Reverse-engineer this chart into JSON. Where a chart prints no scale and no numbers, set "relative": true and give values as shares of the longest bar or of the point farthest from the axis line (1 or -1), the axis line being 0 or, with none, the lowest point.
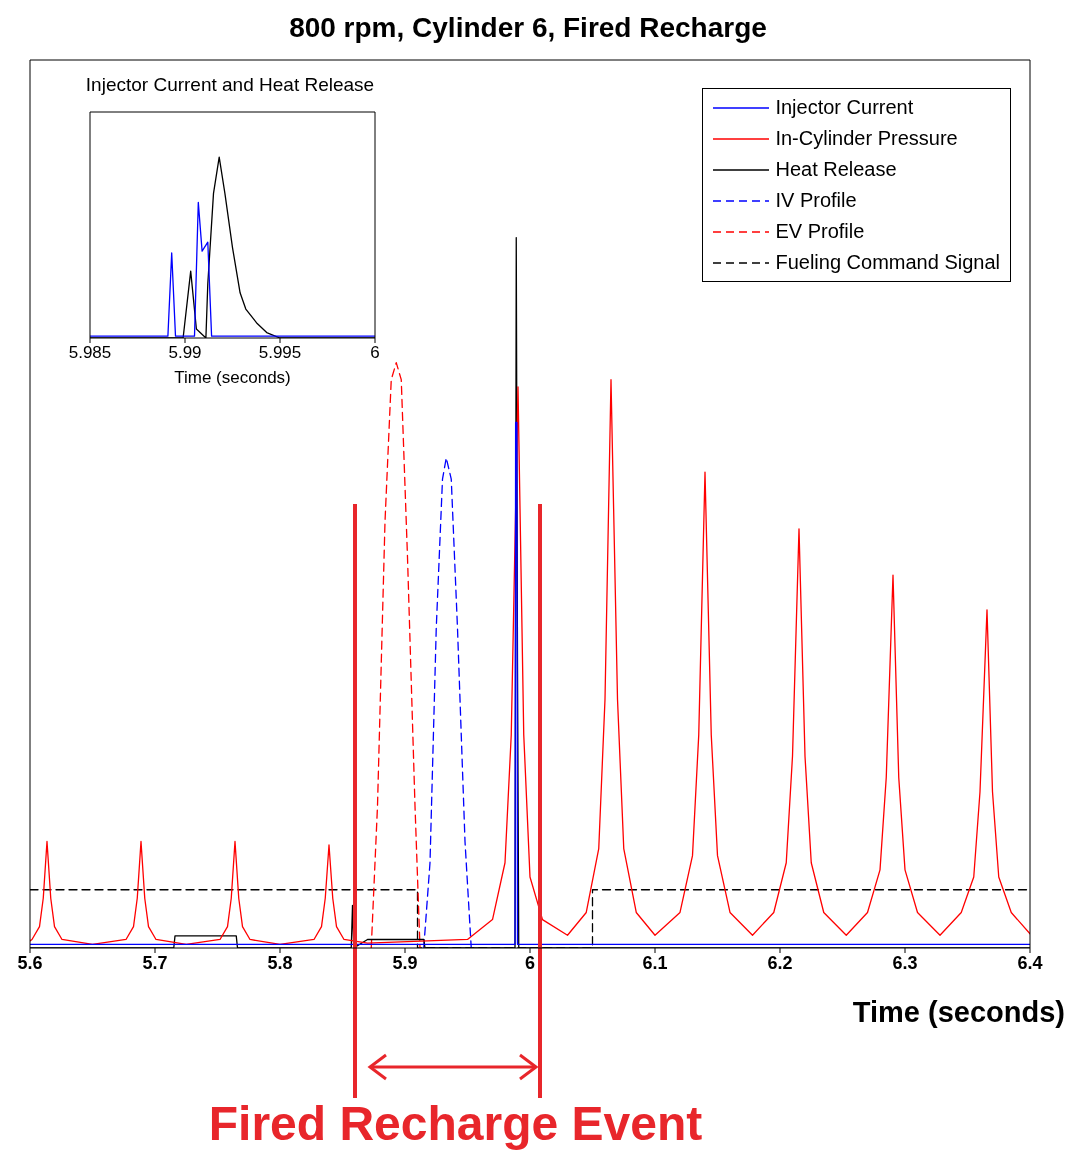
{
  "chart_data": [
    {
      "type": "line",
      "title": "800 rpm, Cylinder 6, Fired Recharge",
      "xlabel": "Time (seconds)",
      "relative": true,
      "xlim": [
        5.6,
        6.4
      ],
      "xticks": [
        5.6,
        5.7,
        5.8,
        5.9,
        6,
        6.1,
        6.2,
        6.3,
        6.4
      ],
      "tick_labels": "x",
      "grid": false,
      "legend": "top right",
      "series": [
        {
          "name": "Injector Current",
          "color": "#0000ff",
          "line_style": "solid",
          "x": [
            5.6,
            5.988,
            5.9885,
            5.9895,
            5.99,
            6.4
          ],
          "values": [
            0.005,
            0.005,
            0.74,
            0.74,
            0.005,
            0.005
          ]
        },
        {
          "name": "In-Cylinder Pressure",
          "color": "#ff0000",
          "line_style": "solid",
          "x": [
            5.6,
            5.6016,
            5.6076,
            5.6106,
            5.6136,
            5.6166,
            5.6196,
            5.6256,
            5.65,
            5.6768,
            5.6828,
            5.6858,
            5.6888,
            5.6918,
            5.6948,
            5.7008,
            5.725,
            5.752,
            5.758,
            5.761,
            5.764,
            5.767,
            5.77,
            5.776,
            5.8,
            5.8272,
            5.8332,
            5.8362,
            5.8392,
            5.8422,
            5.8452,
            5.8512,
            5.87,
            5.95,
            5.97,
            5.98,
            5.985,
            5.9904,
            5.995,
            6.0,
            6.01,
            6.03,
            6.045,
            6.055,
            6.06,
            6.0648,
            6.07,
            6.075,
            6.085,
            6.1,
            6.12,
            6.13,
            6.135,
            6.14,
            6.145,
            6.15,
            6.16,
            6.178,
            6.195,
            6.205,
            6.21,
            6.2152,
            6.22,
            6.225,
            6.235,
            6.253,
            6.27,
            6.28,
            6.285,
            6.2904,
            6.295,
            6.3,
            6.31,
            6.328,
            6.345,
            6.355,
            6.36,
            6.3656,
            6.37,
            6.375,
            6.385,
            6.4
          ],
          "values": [
            0.01,
            0.012,
            0.03,
            0.07,
            0.15,
            0.07,
            0.03,
            0.012,
            0.005,
            0.012,
            0.03,
            0.07,
            0.15,
            0.07,
            0.03,
            0.012,
            0.005,
            0.012,
            0.03,
            0.07,
            0.15,
            0.07,
            0.03,
            0.012,
            0.005,
            0.012,
            0.03,
            0.07,
            0.145,
            0.07,
            0.03,
            0.012,
            0.007,
            0.012,
            0.04,
            0.12,
            0.3,
            0.79,
            0.3,
            0.1,
            0.04,
            0.018,
            0.05,
            0.14,
            0.35,
            0.8,
            0.35,
            0.14,
            0.05,
            0.018,
            0.05,
            0.13,
            0.3,
            0.67,
            0.3,
            0.13,
            0.05,
            0.018,
            0.05,
            0.12,
            0.27,
            0.59,
            0.27,
            0.12,
            0.05,
            0.018,
            0.05,
            0.11,
            0.24,
            0.525,
            0.24,
            0.11,
            0.05,
            0.018,
            0.05,
            0.1,
            0.22,
            0.476,
            0.22,
            0.1,
            0.05,
            0.02
          ]
        },
        {
          "name": "Heat Release",
          "color": "#000000",
          "line_style": "solid",
          "x": [
            5.6,
            5.715,
            5.716,
            5.765,
            5.766,
            5.857,
            5.858,
            5.859,
            5.87,
            5.915,
            5.916,
            5.988,
            5.989,
            5.99,
            5.991,
            6.4
          ],
          "values": [
            0,
            0,
            0.017,
            0.017,
            0,
            0,
            0.06,
            0,
            0.012,
            0.012,
            0,
            0,
            1,
            0.4,
            0,
            0
          ]
        },
        {
          "name": "IV Profile",
          "color": "#0000ff",
          "line_style": "dashed",
          "x": [
            5.915,
            5.92,
            5.925,
            5.93,
            5.933,
            5.937,
            5.942,
            5.948,
            5.953
          ],
          "values": [
            0,
            0.12,
            0.45,
            0.66,
            0.69,
            0.66,
            0.45,
            0.15,
            0
          ]
        },
        {
          "name": "EV Profile",
          "color": "#ff0000",
          "line_style": "dashed",
          "x": [
            5.873,
            5.878,
            5.884,
            5.889,
            5.893,
            5.897,
            5.902,
            5.908,
            5.912
          ],
          "values": [
            0,
            0.2,
            0.6,
            0.8,
            0.824,
            0.8,
            0.55,
            0.2,
            0
          ]
        },
        {
          "name": "Fueling Command Signal",
          "color": "#000000",
          "line_style": "dashed",
          "x": [
            5.6,
            5.91,
            5.91,
            6.05,
            6.05,
            6.4
          ],
          "values": [
            0.082,
            0.082,
            0,
            0,
            0.082,
            0.082
          ]
        }
      ],
      "ref_lines": [
        {
          "axis": "x",
          "value": 5.86,
          "label": null,
          "color": "#e8262b"
        },
        {
          "axis": "x",
          "value": 6.008,
          "label": null,
          "color": "#e8262b"
        }
      ],
      "annotations": [
        "Fired Recharge Event"
      ]
    },
    {
      "type": "line",
      "title": "Injector Current and Heat Release",
      "xlabel": "Time (seconds)",
      "relative": true,
      "xlim": [
        5.985,
        6
      ],
      "xticks": [
        5.985,
        5.99,
        5.995,
        6
      ],
      "tick_labels": "x",
      "grid": false,
      "series": [
        {
          "color": "#0000ff",
          "x": [
            5.985,
            5.9891,
            5.9893,
            5.9895,
            5.9905,
            5.9907,
            5.9909,
            5.9912,
            5.9914,
            6
          ],
          "values": [
            0.01,
            0.01,
            0.47,
            0.01,
            0.01,
            0.75,
            0.48,
            0.53,
            0.01,
            0.01
          ]
        },
        {
          "color": "#000000",
          "x": [
            5.985,
            5.9899,
            5.9903,
            5.9906,
            5.9911,
            5.9912,
            5.9915,
            5.9918,
            5.9921,
            5.9925,
            5.9929,
            5.9932,
            5.9938,
            5.9943,
            5.995,
            6
          ],
          "values": [
            0,
            0,
            0.37,
            0.05,
            0,
            0.3,
            0.8,
            1,
            0.8,
            0.5,
            0.25,
            0.16,
            0.08,
            0.03,
            0,
            0
          ]
        }
      ]
    }
  ]
}
